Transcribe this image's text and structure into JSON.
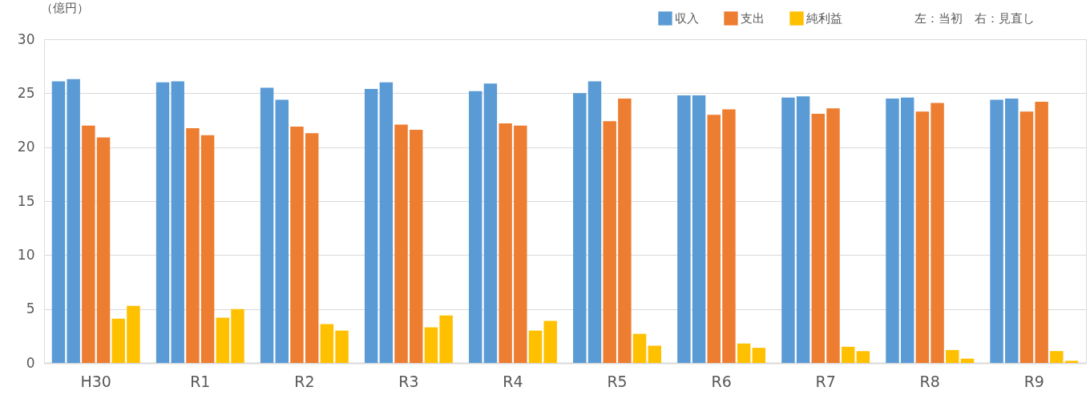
{
  "chart_data": {
    "type": "bar",
    "ylabel": "（億円）",
    "categories": [
      "H30",
      "R1",
      "R2",
      "R3",
      "R4",
      "R5",
      "R6",
      "R7",
      "R8",
      "R9"
    ],
    "series": [
      {
        "name": "収入",
        "color": "#5b9bd5",
        "values": [
          26.1,
          26.0,
          25.5,
          25.4,
          25.2,
          25.0,
          24.8,
          24.6,
          24.5,
          24.4
        ]
      },
      {
        "color": "#5b9bd5",
        "values": [
          26.3,
          26.1,
          24.4,
          26.0,
          25.9,
          26.1,
          24.8,
          24.7,
          24.6,
          24.5
        ]
      },
      {
        "name": "支出",
        "color": "#ed7d31",
        "values": [
          22.0,
          21.75,
          21.9,
          22.1,
          22.2,
          22.4,
          23.0,
          23.1,
          23.3,
          23.3
        ]
      },
      {
        "color": "#ed7d31",
        "values": [
          20.9,
          21.1,
          21.3,
          21.6,
          22.0,
          24.5,
          23.5,
          23.6,
          24.1,
          24.2
        ]
      },
      {
        "name": "純利益",
        "color": "#ffc000",
        "values": [
          4.1,
          4.2,
          3.6,
          3.3,
          3.0,
          2.7,
          1.8,
          1.5,
          1.2,
          1.1
        ]
      },
      {
        "color": "#ffc000",
        "values": [
          5.3,
          5.0,
          3.0,
          4.4,
          3.9,
          1.6,
          1.4,
          1.1,
          0.4,
          0.2
        ]
      }
    ],
    "ylim": [
      0,
      30
    ],
    "yticks": [
      0,
      5,
      10,
      15,
      20,
      25,
      30
    ],
    "grid": "y",
    "legend": "top",
    "annotations": [
      "左：当初　右：見直し"
    ]
  }
}
